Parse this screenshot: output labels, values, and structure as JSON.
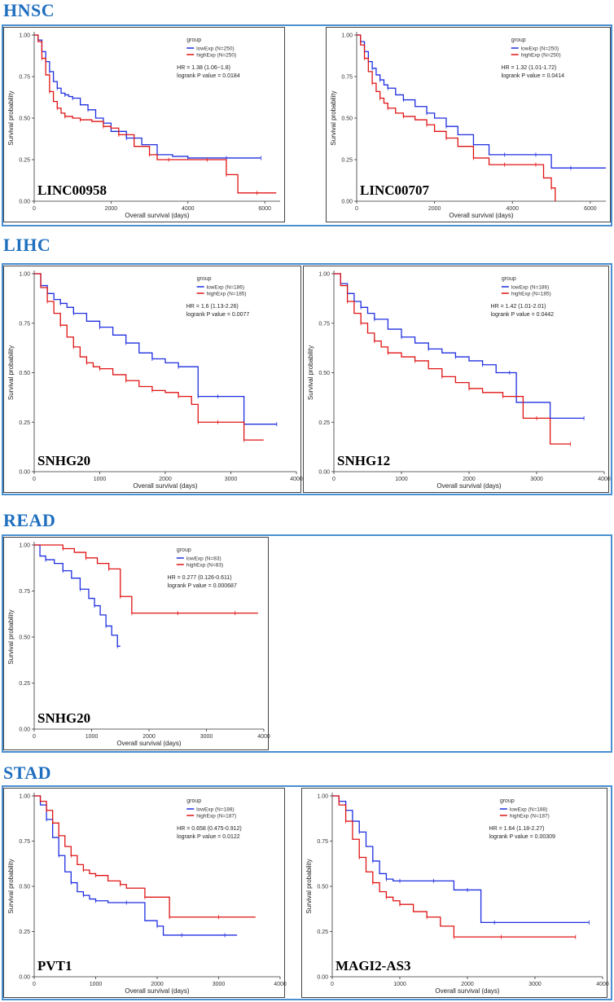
{
  "colors": {
    "low": "#1f2fe0",
    "high": "#e01414",
    "accent": "#1f6fbf",
    "frame": "#4a8fd0"
  },
  "sections": [
    {
      "key": "hnsc",
      "title": "HNSC"
    },
    {
      "key": "lihc",
      "title": "LIHC"
    },
    {
      "key": "read",
      "title": "READ"
    },
    {
      "key": "stad",
      "title": "STAD"
    }
  ],
  "chart_data": [
    {
      "type": "line",
      "id": "hnsc-linc00958",
      "gene": "LINC00958",
      "xlabel": "Overall survival (days)",
      "ylabel": "Survival probability",
      "xlim": [
        0,
        6400
      ],
      "ylim": [
        0,
        1
      ],
      "xticks": [
        0,
        2000,
        4000,
        6000
      ],
      "yticks": [
        0,
        0.25,
        0.5,
        0.75,
        1
      ],
      "legend_title": "group",
      "legend_low": "lowExp (N=250)",
      "legend_high": "highExp (N=250)",
      "hr": "HR = 1.38 (1.06~1.8)",
      "pval": "logrank P value = 0.0184",
      "series": [
        {
          "name": "lowExp",
          "x": [
            0,
            100,
            200,
            300,
            400,
            500,
            600,
            700,
            800,
            900,
            1000,
            1200,
            1400,
            1600,
            1800,
            2000,
            2400,
            2800,
            3200,
            3600,
            4000,
            4500,
            5000,
            5500,
            5900
          ],
          "y": [
            1,
            0.97,
            0.9,
            0.84,
            0.78,
            0.72,
            0.68,
            0.65,
            0.64,
            0.63,
            0.62,
            0.58,
            0.55,
            0.5,
            0.47,
            0.42,
            0.38,
            0.34,
            0.28,
            0.27,
            0.26,
            0.26,
            0.26,
            0.26,
            0.26
          ]
        },
        {
          "name": "highExp",
          "x": [
            0,
            100,
            200,
            300,
            400,
            500,
            600,
            700,
            800,
            1000,
            1200,
            1500,
            1800,
            2000,
            2200,
            2600,
            3000,
            3200,
            3500,
            4000,
            4500,
            4800,
            5000,
            5300,
            5800,
            6300
          ],
          "y": [
            1,
            0.96,
            0.86,
            0.76,
            0.66,
            0.6,
            0.56,
            0.53,
            0.51,
            0.5,
            0.49,
            0.48,
            0.45,
            0.44,
            0.4,
            0.33,
            0.28,
            0.25,
            0.25,
            0.25,
            0.25,
            0.25,
            0.16,
            0.05,
            0.05,
            0.05
          ]
        }
      ]
    },
    {
      "type": "line",
      "id": "hnsc-linc00707",
      "gene": "LINC00707",
      "xlabel": "Overall survival (days)",
      "ylabel": "Survival probability",
      "xlim": [
        0,
        6400
      ],
      "ylim": [
        0,
        1
      ],
      "xticks": [
        0,
        2000,
        4000,
        6000
      ],
      "yticks": [
        0,
        0.25,
        0.5,
        0.75,
        1
      ],
      "legend_title": "group",
      "legend_low": "lowExp (N=250)",
      "legend_high": "highExp (N=250)",
      "hr": "HR = 1.32 (1.01-1.72)",
      "pval": "logrank P value = 0.0414",
      "series": [
        {
          "name": "lowExp",
          "x": [
            0,
            100,
            200,
            300,
            400,
            500,
            600,
            700,
            800,
            1000,
            1200,
            1500,
            1800,
            2000,
            2300,
            2600,
            3000,
            3400,
            3800,
            4200,
            4600,
            5000,
            5500,
            6400
          ],
          "y": [
            1,
            0.96,
            0.9,
            0.84,
            0.8,
            0.76,
            0.73,
            0.7,
            0.68,
            0.64,
            0.61,
            0.57,
            0.53,
            0.5,
            0.45,
            0.4,
            0.34,
            0.28,
            0.28,
            0.28,
            0.28,
            0.2,
            0.2,
            0.2
          ]
        },
        {
          "name": "highExp",
          "x": [
            0,
            100,
            200,
            300,
            400,
            500,
            600,
            700,
            800,
            1000,
            1200,
            1500,
            1800,
            2000,
            2300,
            2600,
            3000,
            3400,
            3800,
            4200,
            4600,
            4800,
            5000,
            5100
          ],
          "y": [
            1,
            0.94,
            0.86,
            0.78,
            0.71,
            0.66,
            0.62,
            0.59,
            0.56,
            0.53,
            0.51,
            0.49,
            0.46,
            0.42,
            0.38,
            0.33,
            0.26,
            0.22,
            0.22,
            0.22,
            0.22,
            0.14,
            0.08,
            0.0
          ]
        }
      ]
    },
    {
      "type": "line",
      "id": "lihc-snhg20",
      "gene": "SNHG20",
      "xlabel": "Overall survival (days)",
      "ylabel": "Survival probability",
      "xlim": [
        0,
        4000
      ],
      "ylim": [
        0,
        1
      ],
      "xticks": [
        0,
        1000,
        2000,
        3000,
        4000
      ],
      "yticks": [
        0,
        0.25,
        0.5,
        0.75,
        1
      ],
      "legend_title": "group",
      "legend_low": "lowExp (N=186)",
      "legend_high": "highExp (N=185)",
      "hr": "HR = 1.6 (1.13-2.26)",
      "pval": "logrank P value = 0.0077",
      "series": [
        {
          "name": "lowExp",
          "x": [
            0,
            100,
            200,
            300,
            400,
            500,
            600,
            800,
            1000,
            1200,
            1400,
            1600,
            1800,
            2000,
            2200,
            2400,
            2500,
            2600,
            2800,
            3000,
            3200,
            3400,
            3700
          ],
          "y": [
            1,
            0.94,
            0.9,
            0.87,
            0.85,
            0.83,
            0.8,
            0.76,
            0.73,
            0.69,
            0.65,
            0.6,
            0.57,
            0.55,
            0.53,
            0.53,
            0.38,
            0.38,
            0.38,
            0.38,
            0.24,
            0.24,
            0.24
          ]
        },
        {
          "name": "highExp",
          "x": [
            0,
            100,
            200,
            300,
            400,
            500,
            600,
            700,
            800,
            900,
            1000,
            1200,
            1400,
            1600,
            1800,
            2000,
            2200,
            2400,
            2500,
            2600,
            2800,
            3000,
            3200,
            3500
          ],
          "y": [
            1,
            0.93,
            0.86,
            0.8,
            0.74,
            0.68,
            0.63,
            0.58,
            0.55,
            0.53,
            0.52,
            0.49,
            0.46,
            0.43,
            0.41,
            0.4,
            0.38,
            0.34,
            0.25,
            0.25,
            0.25,
            0.25,
            0.16,
            0.16
          ]
        }
      ]
    },
    {
      "type": "line",
      "id": "lihc-snhg12",
      "gene": "SNHG12",
      "xlabel": "Overall survival (days)",
      "ylabel": "Survival probability",
      "xlim": [
        0,
        4000
      ],
      "ylim": [
        0,
        1
      ],
      "xticks": [
        0,
        1000,
        2000,
        3000,
        4000
      ],
      "yticks": [
        0,
        0.25,
        0.5,
        0.75,
        1
      ],
      "legend_title": "group",
      "legend_low": "lowExp (N=186)",
      "legend_high": "highExp (N=185)",
      "hr": "HR = 1.42 (1.01-2.01)",
      "pval": "logrank P value = 0.0442",
      "series": [
        {
          "name": "lowExp",
          "x": [
            0,
            100,
            200,
            300,
            400,
            500,
            600,
            800,
            1000,
            1200,
            1400,
            1600,
            1800,
            2000,
            2200,
            2400,
            2600,
            2700,
            2800,
            3000,
            3200,
            3400,
            3700
          ],
          "y": [
            1,
            0.95,
            0.9,
            0.86,
            0.83,
            0.8,
            0.77,
            0.72,
            0.68,
            0.65,
            0.62,
            0.6,
            0.58,
            0.56,
            0.54,
            0.5,
            0.5,
            0.35,
            0.35,
            0.35,
            0.27,
            0.27,
            0.27
          ]
        },
        {
          "name": "highExp",
          "x": [
            0,
            100,
            200,
            300,
            400,
            500,
            600,
            700,
            800,
            1000,
            1200,
            1400,
            1600,
            1800,
            2000,
            2200,
            2500,
            2800,
            3000,
            3200,
            3500
          ],
          "y": [
            1,
            0.94,
            0.86,
            0.8,
            0.75,
            0.7,
            0.66,
            0.63,
            0.6,
            0.58,
            0.56,
            0.52,
            0.48,
            0.45,
            0.42,
            0.4,
            0.38,
            0.27,
            0.27,
            0.14,
            0.14
          ]
        }
      ]
    },
    {
      "type": "line",
      "id": "read-snhg20",
      "gene": "SNHG20",
      "xlabel": "Overall survival (days)",
      "ylabel": "Survival probability",
      "xlim": [
        0,
        4000
      ],
      "ylim": [
        0,
        1
      ],
      "xticks": [
        0,
        1000,
        2000,
        3000,
        4000
      ],
      "yticks": [
        0,
        0.25,
        0.5,
        0.75,
        1
      ],
      "legend_title": "group",
      "legend_low": "lowExp (N=83)",
      "legend_high": "highExp (N=83)",
      "hr": "HR = 0.277 (0.126-0.611)",
      "pval": "logrank P value = 0.000687",
      "series": [
        {
          "name": "lowExp",
          "x": [
            0,
            100,
            200,
            350,
            500,
            650,
            800,
            950,
            1050,
            1150,
            1250,
            1350,
            1450,
            1500
          ],
          "y": [
            1,
            0.94,
            0.92,
            0.9,
            0.86,
            0.82,
            0.76,
            0.71,
            0.67,
            0.62,
            0.56,
            0.51,
            0.45,
            0.45
          ]
        },
        {
          "name": "highExp",
          "x": [
            0,
            300,
            500,
            700,
            900,
            1100,
            1300,
            1400,
            1500,
            1600,
            1700,
            2000,
            2500,
            3000,
            3500,
            3900
          ],
          "y": [
            1,
            1,
            0.98,
            0.96,
            0.93,
            0.9,
            0.87,
            0.87,
            0.72,
            0.72,
            0.63,
            0.63,
            0.63,
            0.63,
            0.63,
            0.63
          ]
        }
      ]
    },
    {
      "type": "line",
      "id": "stad-pvt1",
      "gene": "PVT1",
      "xlabel": "Overall survival (days)",
      "ylabel": "Survival probability",
      "xlim": [
        0,
        4000
      ],
      "ylim": [
        0,
        1
      ],
      "xticks": [
        0,
        1000,
        2000,
        3000,
        4000
      ],
      "yticks": [
        0,
        0.25,
        0.5,
        0.75,
        1
      ],
      "legend_title": "group",
      "legend_low": "lowExp (N=188)",
      "legend_high": "highExp (N=187)",
      "hr": "HR = 0.658 (0.475-0.912)",
      "pval": "logrank P value = 0.0122",
      "series": [
        {
          "name": "lowExp",
          "x": [
            0,
            100,
            200,
            300,
            400,
            500,
            600,
            700,
            800,
            900,
            1000,
            1200,
            1500,
            1800,
            2000,
            2100,
            2400,
            2800,
            3100,
            3300
          ],
          "y": [
            1,
            0.95,
            0.87,
            0.77,
            0.67,
            0.58,
            0.52,
            0.47,
            0.45,
            0.43,
            0.42,
            0.41,
            0.41,
            0.31,
            0.28,
            0.23,
            0.23,
            0.23,
            0.23,
            0.23
          ]
        },
        {
          "name": "highExp",
          "x": [
            0,
            100,
            200,
            300,
            400,
            500,
            600,
            700,
            800,
            900,
            1000,
            1200,
            1400,
            1500,
            1800,
            2000,
            2200,
            2500,
            3000,
            3600
          ],
          "y": [
            1,
            0.97,
            0.92,
            0.85,
            0.78,
            0.72,
            0.67,
            0.62,
            0.59,
            0.57,
            0.56,
            0.53,
            0.51,
            0.49,
            0.44,
            0.44,
            0.33,
            0.33,
            0.33,
            0.33
          ]
        }
      ]
    },
    {
      "type": "line",
      "id": "stad-magi2as3",
      "gene": "MAGI2-AS3",
      "xlabel": "Overall survival (days)",
      "ylabel": "Survival probability",
      "xlim": [
        0,
        4000
      ],
      "ylim": [
        0,
        1
      ],
      "xticks": [
        0,
        1000,
        2000,
        3000,
        4000
      ],
      "yticks": [
        0,
        0.25,
        0.5,
        0.75,
        1
      ],
      "legend_title": "group",
      "legend_low": "lowExp (N=188)",
      "legend_high": "highExp (N=187)",
      "hr": "HR = 1.64 (1.18-2.27)",
      "pval": "logrank P value = 0.00309",
      "series": [
        {
          "name": "lowExp",
          "x": [
            0,
            100,
            200,
            300,
            400,
            500,
            600,
            700,
            800,
            900,
            1000,
            1200,
            1500,
            1800,
            2000,
            2200,
            2400,
            3000,
            3800
          ],
          "y": [
            1,
            0.97,
            0.92,
            0.86,
            0.8,
            0.72,
            0.64,
            0.57,
            0.54,
            0.53,
            0.53,
            0.53,
            0.53,
            0.48,
            0.48,
            0.3,
            0.3,
            0.3,
            0.3
          ]
        },
        {
          "name": "highExp",
          "x": [
            0,
            100,
            200,
            300,
            400,
            500,
            600,
            700,
            800,
            900,
            1000,
            1200,
            1400,
            1600,
            1800,
            2000,
            2500,
            3000,
            3600
          ],
          "y": [
            1,
            0.95,
            0.86,
            0.76,
            0.66,
            0.58,
            0.52,
            0.47,
            0.44,
            0.42,
            0.4,
            0.36,
            0.33,
            0.28,
            0.22,
            0.22,
            0.22,
            0.22,
            0.22
          ]
        }
      ]
    }
  ]
}
